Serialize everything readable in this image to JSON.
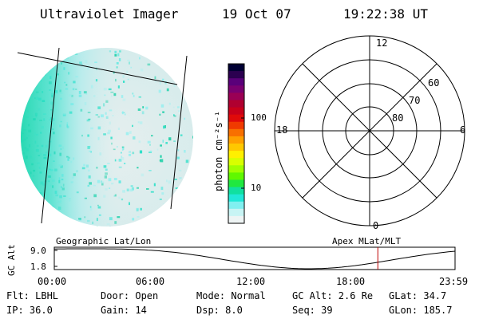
{
  "header": {
    "title": "Ultraviolet Imager",
    "date": "19 Oct 07",
    "time": "19:22:38 UT"
  },
  "colorbar": {
    "unit_label": "photon cm⁻²s⁻¹",
    "ticks": [
      "100",
      "10"
    ],
    "colors": [
      "#000033",
      "#2b0050",
      "#5a007a",
      "#7a0070",
      "#9a0055",
      "#b00030",
      "#c8001a",
      "#e00a0a",
      "#f03a00",
      "#f87000",
      "#ffa000",
      "#ffc800",
      "#fff000",
      "#d8ff00",
      "#a0ff00",
      "#60f800",
      "#20e840",
      "#10e0a0",
      "#20e8d8",
      "#80f0f0",
      "#c8f4f4",
      "#eef4f4"
    ]
  },
  "polar": {
    "hour_labels": [
      "12",
      "18",
      "6",
      "0"
    ],
    "lat_labels": [
      "60",
      "70",
      "80"
    ]
  },
  "timeline": {
    "left_label": "Geographic Lat/Lon",
    "right_label": "Apex MLat/MLT",
    "axis_name": "GC Alt",
    "y_max": "9.0",
    "y_min": "1.8",
    "x_ticks": [
      "00:00",
      "06:00",
      "12:00",
      "18:00",
      "23:59"
    ],
    "current_time_fraction": 0.8073
  },
  "footer": {
    "filter": "Flt: LBHL",
    "ip": "IP: 36.0",
    "door": "Door: Open",
    "gain": "Gain: 14",
    "mode": "Mode: Normal",
    "dsp": "Dsp:    8.0",
    "gc_alt": "GC Alt: 2.6 Re",
    "seq": "Seq: 39",
    "glat": "GLat:  34.7",
    "glon": "GLon: 185.7"
  }
}
